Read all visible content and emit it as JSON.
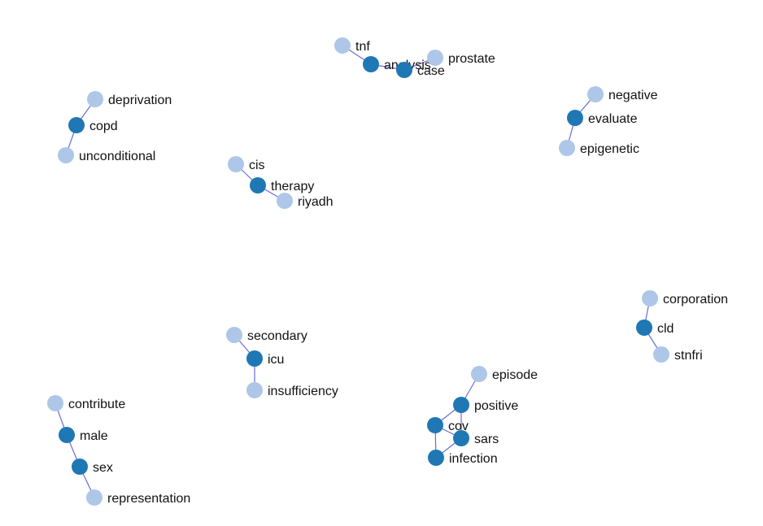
{
  "colors": {
    "primary": "#1f77b4",
    "secondary": "#aec7e8",
    "edge": "#6b6bd6",
    "label": "#111111"
  },
  "graph": {
    "nodes": [
      {
        "id": "tnf",
        "label": "tnf",
        "kind": "secondary"
      },
      {
        "id": "analysis",
        "label": "analysis",
        "kind": "primary"
      },
      {
        "id": "case",
        "label": "case",
        "kind": "primary"
      },
      {
        "id": "prostate",
        "label": "prostate",
        "kind": "secondary"
      },
      {
        "id": "deprivation",
        "label": "deprivation",
        "kind": "secondary"
      },
      {
        "id": "copd",
        "label": "copd",
        "kind": "primary"
      },
      {
        "id": "unconditional",
        "label": "unconditional",
        "kind": "secondary"
      },
      {
        "id": "negative",
        "label": "negative",
        "kind": "secondary"
      },
      {
        "id": "evaluate",
        "label": "evaluate",
        "kind": "primary"
      },
      {
        "id": "epigenetic",
        "label": "epigenetic",
        "kind": "secondary"
      },
      {
        "id": "cis",
        "label": "cis",
        "kind": "secondary"
      },
      {
        "id": "therapy",
        "label": "therapy",
        "kind": "primary"
      },
      {
        "id": "riyadh",
        "label": "riyadh",
        "kind": "secondary"
      },
      {
        "id": "corporation",
        "label": "corporation",
        "kind": "secondary"
      },
      {
        "id": "cld",
        "label": "cld",
        "kind": "primary"
      },
      {
        "id": "stnfri",
        "label": "stnfri",
        "kind": "secondary"
      },
      {
        "id": "secondary",
        "label": "secondary",
        "kind": "secondary"
      },
      {
        "id": "icu",
        "label": "icu",
        "kind": "primary"
      },
      {
        "id": "insufficiency",
        "label": "insufficiency",
        "kind": "secondary"
      },
      {
        "id": "episode",
        "label": "episode",
        "kind": "secondary"
      },
      {
        "id": "positive",
        "label": "positive",
        "kind": "primary"
      },
      {
        "id": "cov",
        "label": "cov",
        "kind": "primary"
      },
      {
        "id": "sars",
        "label": "sars",
        "kind": "primary"
      },
      {
        "id": "infection",
        "label": "infection",
        "kind": "primary"
      },
      {
        "id": "contribute",
        "label": "contribute",
        "kind": "secondary"
      },
      {
        "id": "male",
        "label": "male",
        "kind": "primary"
      },
      {
        "id": "sex",
        "label": "sex",
        "kind": "primary"
      },
      {
        "id": "representation",
        "label": "representation",
        "kind": "secondary"
      }
    ],
    "edges": [
      {
        "source": "tnf",
        "target": "analysis"
      },
      {
        "source": "analysis",
        "target": "case"
      },
      {
        "source": "case",
        "target": "prostate"
      },
      {
        "source": "deprivation",
        "target": "copd"
      },
      {
        "source": "copd",
        "target": "unconditional"
      },
      {
        "source": "negative",
        "target": "evaluate"
      },
      {
        "source": "evaluate",
        "target": "epigenetic"
      },
      {
        "source": "cis",
        "target": "therapy"
      },
      {
        "source": "therapy",
        "target": "riyadh"
      },
      {
        "source": "corporation",
        "target": "cld"
      },
      {
        "source": "cld",
        "target": "stnfri"
      },
      {
        "source": "secondary",
        "target": "icu"
      },
      {
        "source": "icu",
        "target": "insufficiency"
      },
      {
        "source": "episode",
        "target": "positive"
      },
      {
        "source": "positive",
        "target": "cov"
      },
      {
        "source": "positive",
        "target": "sars"
      },
      {
        "source": "cov",
        "target": "sars"
      },
      {
        "source": "cov",
        "target": "infection"
      },
      {
        "source": "sars",
        "target": "infection"
      },
      {
        "source": "contribute",
        "target": "male"
      },
      {
        "source": "male",
        "target": "sex"
      },
      {
        "source": "sex",
        "target": "representation"
      }
    ]
  }
}
